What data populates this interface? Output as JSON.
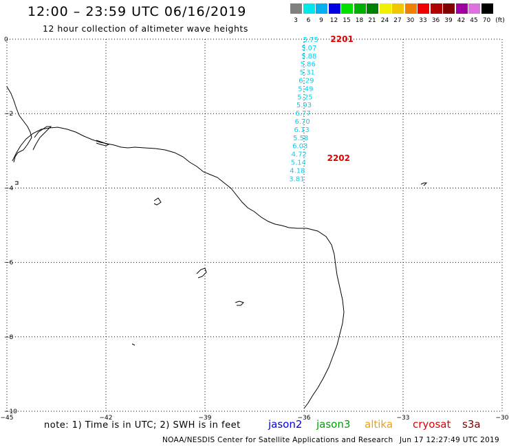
{
  "header": {
    "title": "12:00 – 23:59 UTC 06/16/2019",
    "subtitle": "12 hour collection of altimeter wave heights"
  },
  "legend": {
    "unit": "(ft)",
    "bins": [
      {
        "label": "3",
        "color": "#808080"
      },
      {
        "label": "6",
        "color": "#00e8e8"
      },
      {
        "label": "9",
        "color": "#00b0f0"
      },
      {
        "label": "12",
        "color": "#0000e0"
      },
      {
        "label": "15",
        "color": "#00e000"
      },
      {
        "label": "18",
        "color": "#00b000"
      },
      {
        "label": "21",
        "color": "#008000"
      },
      {
        "label": "24",
        "color": "#f0f000"
      },
      {
        "label": "27",
        "color": "#f0c800"
      },
      {
        "label": "30",
        "color": "#f08000"
      },
      {
        "label": "33",
        "color": "#f00000"
      },
      {
        "label": "36",
        "color": "#b00000"
      },
      {
        "label": "39",
        "color": "#800000"
      },
      {
        "label": "42",
        "color": "#a000a0"
      },
      {
        "label": "45",
        "color": "#e070e0"
      },
      {
        "label": "70",
        "color": "#000000"
      }
    ]
  },
  "map": {
    "lat_ticks": [
      "0",
      "−2",
      "−4",
      "−6",
      "−8",
      "−10"
    ],
    "lon_ticks": [
      "−45",
      "−42",
      "−39",
      "−36",
      "−33",
      "−30"
    ],
    "passes": [
      {
        "id": "2201",
        "lon": -35.2,
        "lat": 0.0
      },
      {
        "id": "2202",
        "lon": -35.3,
        "lat": -3.2
      }
    ],
    "wave_heights": [
      {
        "value": "5.75",
        "lon": -35.8,
        "lat": 0.0
      },
      {
        "value": "5.07",
        "lon": -35.85,
        "lat": -0.22
      },
      {
        "value": "5.88",
        "lon": -35.85,
        "lat": -0.44
      },
      {
        "value": "5.86",
        "lon": -35.88,
        "lat": -0.66
      },
      {
        "value": "5.31",
        "lon": -35.9,
        "lat": -0.88
      },
      {
        "value": "6.29",
        "lon": -35.93,
        "lat": -1.1
      },
      {
        "value": "5.49",
        "lon": -35.95,
        "lat": -1.32
      },
      {
        "value": "5.25",
        "lon": -35.97,
        "lat": -1.54
      },
      {
        "value": "5.93",
        "lon": -36.0,
        "lat": -1.76
      },
      {
        "value": "6.77",
        "lon": -36.03,
        "lat": -1.98
      },
      {
        "value": "6.70",
        "lon": -36.05,
        "lat": -2.2
      },
      {
        "value": "6.13",
        "lon": -36.07,
        "lat": -2.42
      },
      {
        "value": "5.58",
        "lon": -36.1,
        "lat": -2.64
      },
      {
        "value": "6.03",
        "lon": -36.12,
        "lat": -2.86
      },
      {
        "value": "4.72",
        "lon": -36.15,
        "lat": -3.08
      },
      {
        "value": "5.14",
        "lon": -36.17,
        "lat": -3.3
      },
      {
        "value": "4.18",
        "lon": -36.2,
        "lat": -3.52
      },
      {
        "value": "3.81",
        "lon": -36.22,
        "lat": -3.74
      }
    ]
  },
  "footer": {
    "note": "note:  1) Time is in UTC;  2) SWH is in feet",
    "satellites": [
      {
        "name": "jason2",
        "color": "#0000e0"
      },
      {
        "name": "jason3",
        "color": "#00a000"
      },
      {
        "name": "altika",
        "color": "#f0a000"
      },
      {
        "name": "cryosat",
        "color": "#e00000"
      },
      {
        "name": "s3a",
        "color": "#800000"
      }
    ],
    "credit": "NOAA/NESDIS Center for Satellite Applications and Research",
    "timestamp": "Jun 17 12:27:49 UTC 2019"
  }
}
